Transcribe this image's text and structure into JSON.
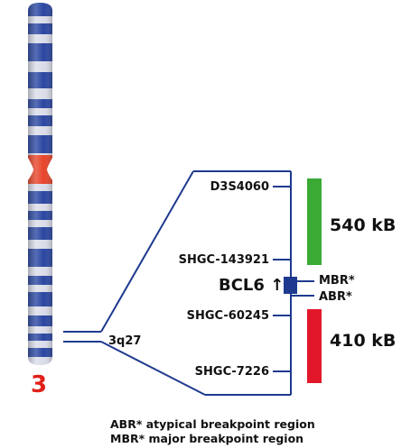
{
  "chromosome": {
    "number": "3",
    "band": "3q27"
  },
  "markers": [
    {
      "name": "D3S4060"
    },
    {
      "name": "SHGC-143921"
    },
    {
      "name": "SHGC-60245"
    },
    {
      "name": "SHGC-7226"
    }
  ],
  "gene": {
    "name": "BCL6",
    "arrow": "↑"
  },
  "regions": [
    {
      "label": "MBR*"
    },
    {
      "label": "ABR*"
    }
  ],
  "segments": [
    {
      "size": "540 kB",
      "color": "#3aaa35"
    },
    {
      "size": "410 kB",
      "color": "#e3172a"
    }
  ],
  "legend": [
    "ABR* atypical breakpoint region",
    "MBR* major breakpoint region"
  ],
  "colors": {
    "chromosome_blue": "#1e3c9c",
    "chromosome_light": "#d8dbe8",
    "centromere": "#e63a1e",
    "map_line": "#1e3a8f",
    "bcl6_box": "#1e3a8f"
  }
}
